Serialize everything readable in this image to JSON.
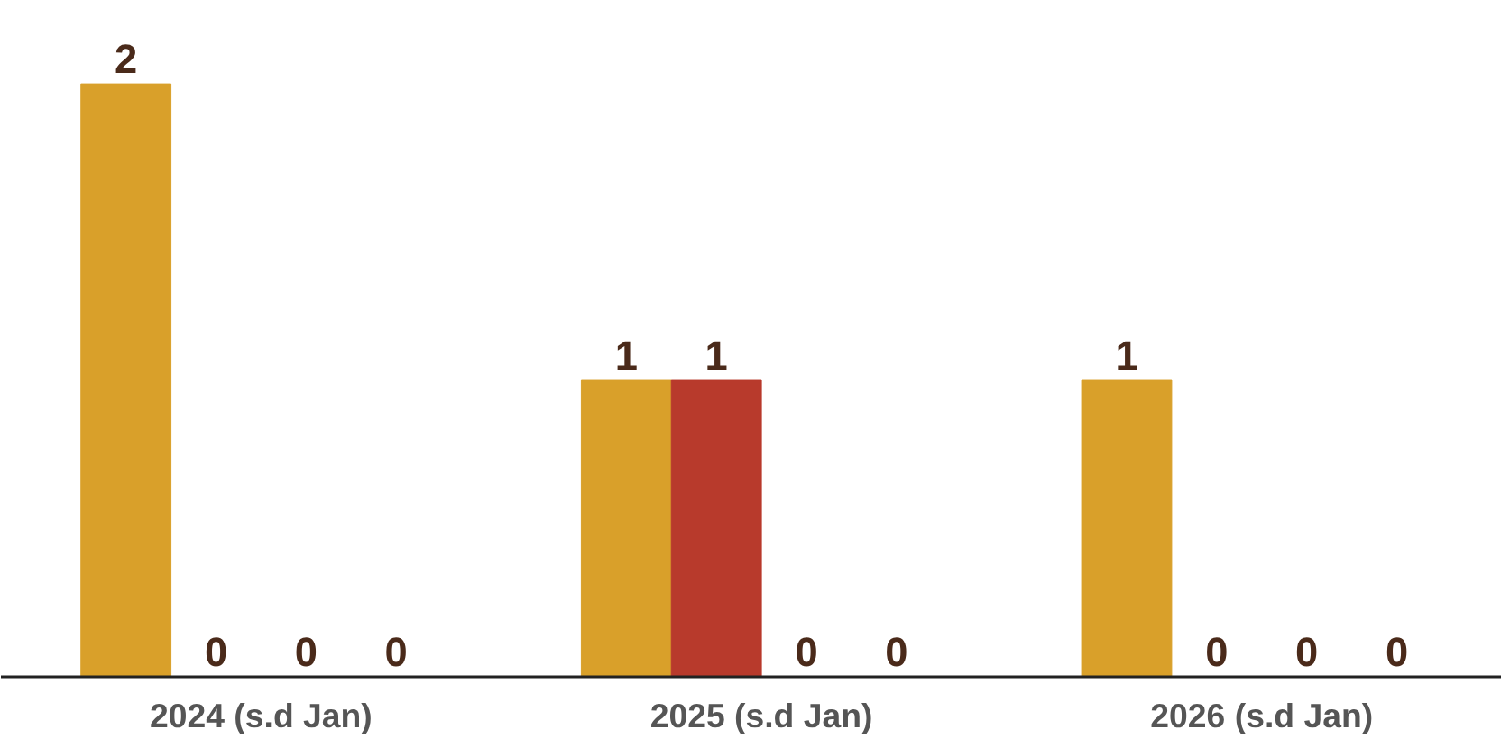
{
  "chart_data": {
    "type": "bar",
    "categories": [
      "2024 (s.d Jan)",
      "2025 (s.d Jan)",
      "2026 (s.d Jan)"
    ],
    "series": [
      {
        "color": "#d9a02a",
        "values": [
          2,
          1,
          1
        ]
      },
      {
        "color": "#b83a2c",
        "values": [
          0,
          1,
          0
        ]
      },
      {
        "values": [
          0,
          0,
          0
        ]
      },
      {
        "values": [
          0,
          0,
          0
        ]
      }
    ],
    "data_labels": true,
    "grid": false
  }
}
